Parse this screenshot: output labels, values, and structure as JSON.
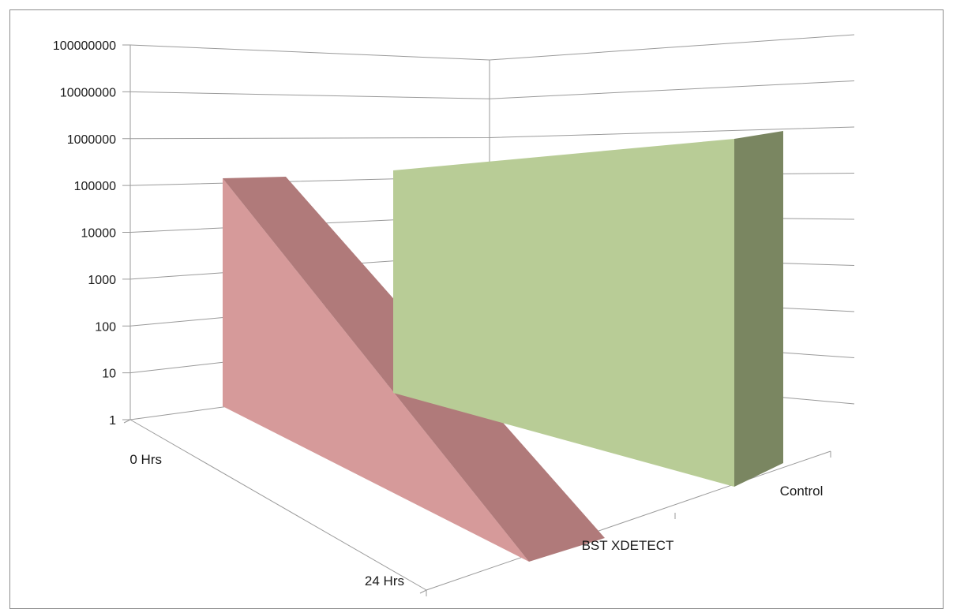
{
  "chart_data": {
    "type": "area",
    "view": "3d",
    "categories": [
      "0 Hrs",
      "24 Hrs"
    ],
    "series": [
      {
        "name": "BST XDETECT",
        "values": [
          100000,
          1
        ],
        "color": "#d69a9a",
        "side_color": "#b07a7a"
      },
      {
        "name": "Control",
        "values": [
          100000,
          1000000
        ],
        "color": "#b8cc96",
        "side_color": "#7a8661"
      }
    ],
    "y_scale": "log",
    "ylim": [
      1,
      100000000
    ],
    "y_ticks": [
      "1",
      "10",
      "100",
      "1000",
      "10000",
      "100000",
      "1000000",
      "10000000",
      "100000000"
    ],
    "grid": true,
    "legend": "none"
  }
}
